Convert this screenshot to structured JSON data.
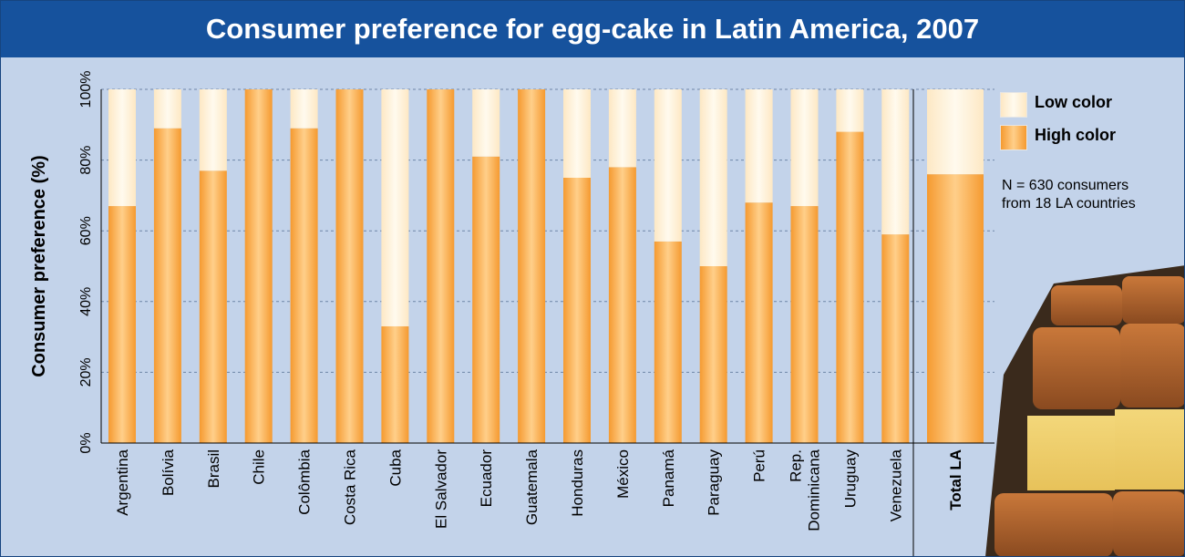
{
  "chart_data": {
    "type": "bar",
    "stacked": true,
    "title": "Consumer preference for egg-cake in Latin America, 2007",
    "ylabel": "Consumer preference (%)",
    "xlabel": "",
    "ylim": [
      0,
      100
    ],
    "y_ticks": [
      "0%",
      "20%",
      "40%",
      "60%",
      "80%",
      "100%"
    ],
    "categories": [
      [
        "Argentina"
      ],
      [
        "Bolívia"
      ],
      [
        "Brasil"
      ],
      [
        "Chile"
      ],
      [
        "Colômbia"
      ],
      [
        "Costa Rica"
      ],
      [
        "Cuba"
      ],
      [
        "El Salvador"
      ],
      [
        "Ecuador"
      ],
      [
        "Guatemala"
      ],
      [
        "Honduras"
      ],
      [
        "México"
      ],
      [
        "Panamá"
      ],
      [
        "Paraguay"
      ],
      [
        "Perú"
      ],
      [
        "Rep.",
        "Dominicana"
      ],
      [
        "Uruguay"
      ],
      [
        "Venezuela"
      ],
      [
        "Total LA"
      ]
    ],
    "series": [
      {
        "name": "High color",
        "color": "#f7a543",
        "values": [
          67,
          89,
          77,
          100,
          89,
          100,
          33,
          100,
          81,
          100,
          75,
          78,
          57,
          50,
          68,
          67,
          88,
          59,
          76
        ]
      },
      {
        "name": "Low color",
        "color": "#fff3d6",
        "values": [
          33,
          11,
          23,
          0,
          11,
          0,
          67,
          0,
          19,
          0,
          25,
          22,
          43,
          50,
          32,
          33,
          12,
          41,
          24
        ]
      }
    ],
    "grid": true,
    "legend_position": "top-right"
  },
  "legend": [
    {
      "label": "Low color",
      "color": "#fff3d6"
    },
    {
      "label": "High color",
      "color": "#f7a543"
    }
  ],
  "note": [
    "N = 630 consumers",
    "from 18 LA countries"
  ]
}
